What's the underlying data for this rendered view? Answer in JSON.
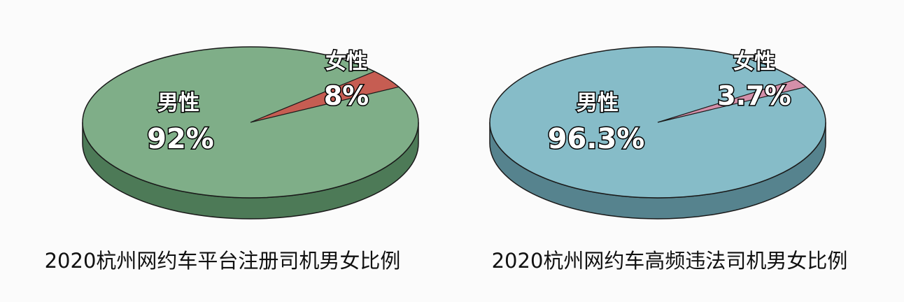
{
  "chart_data": [
    {
      "type": "pie",
      "style": "3d",
      "title": "2020杭州网约车平台注册司机男女比例",
      "slices": [
        {
          "label": "男性",
          "value": 92,
          "display": "92%",
          "color": "#7fae88",
          "side_color": "#4d7a57"
        },
        {
          "label": "女性",
          "value": 8,
          "display": "8%",
          "color": "#c65d52",
          "side_color": "#8a3a33"
        }
      ]
    },
    {
      "type": "pie",
      "style": "3d",
      "title": "2020杭州网约车高频违法司机男女比例",
      "slices": [
        {
          "label": "男性",
          "value": 96.3,
          "display": "96.3%",
          "color": "#86bcc8",
          "side_color": "#56838e"
        },
        {
          "label": "女性",
          "value": 3.7,
          "display": "3.7%",
          "color": "#d48fa9",
          "side_color": "#9b5f75"
        }
      ]
    }
  ]
}
